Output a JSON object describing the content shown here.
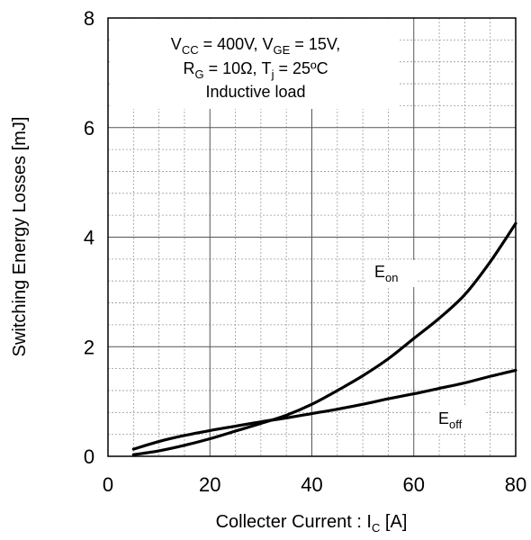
{
  "chart_data": {
    "type": "line",
    "title": "",
    "xlabel": {
      "main": "Collecter Current : I",
      "sub": "C",
      "unit": " [A]"
    },
    "ylabel": "Switching Energy Losses [mJ]",
    "xlim": [
      0,
      80
    ],
    "ylim": [
      0,
      8
    ],
    "x_ticks": [
      "0",
      "20",
      "40",
      "60",
      "80"
    ],
    "y_ticks": [
      "0",
      "2",
      "4",
      "6",
      "8"
    ],
    "x_major_step": 20,
    "x_minor_step": 5,
    "y_major_step": 2,
    "y_minor_step": 0.4,
    "grid": true,
    "series": [
      {
        "name": "E_on",
        "label_main": "E",
        "label_sub": "on",
        "x": [
          5,
          10,
          15,
          20,
          25,
          30,
          35,
          40,
          45,
          50,
          55,
          60,
          65,
          70,
          75,
          80
        ],
        "y": [
          0.03,
          0.1,
          0.2,
          0.32,
          0.46,
          0.6,
          0.75,
          0.95,
          1.2,
          1.47,
          1.78,
          2.15,
          2.52,
          2.95,
          3.55,
          4.25
        ]
      },
      {
        "name": "E_off",
        "label_main": "E",
        "label_sub": "off",
        "x": [
          5,
          10,
          15,
          20,
          25,
          30,
          35,
          40,
          45,
          50,
          55,
          60,
          65,
          70,
          75,
          80
        ],
        "y": [
          0.13,
          0.27,
          0.38,
          0.47,
          0.55,
          0.63,
          0.7,
          0.78,
          0.86,
          0.95,
          1.05,
          1.14,
          1.24,
          1.34,
          1.46,
          1.57
        ]
      }
    ],
    "annotation": {
      "line1": [
        {
          "t": "V"
        },
        {
          "t": "CC",
          "sub": true
        },
        {
          "t": " = 400V, V"
        },
        {
          "t": "GE",
          "sub": true
        },
        {
          "t": " = 15V,"
        }
      ],
      "line2": [
        {
          "t": "R"
        },
        {
          "t": "G",
          "sub": true
        },
        {
          "t": " = 10Ω, T"
        },
        {
          "t": "j",
          "sub": true
        },
        {
          "t": " = 25ºC"
        }
      ],
      "line3": "Inductive load"
    }
  }
}
